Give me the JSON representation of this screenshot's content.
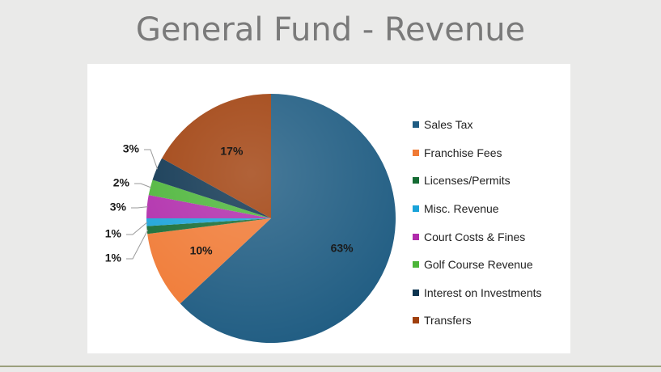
{
  "slide": {
    "title": "General Fund - Revenue"
  },
  "chart_data": {
    "type": "pie",
    "title": "",
    "slices": [
      {
        "name": "Sales Tax",
        "value": 63,
        "label": "63%",
        "color": "#1f5c82"
      },
      {
        "name": "Franchise Fees",
        "value": 10,
        "label": "10%",
        "color": "#f07a35"
      },
      {
        "name": "Licenses/Permits",
        "value": 1,
        "label": "1%",
        "color": "#156b33"
      },
      {
        "name": "Misc. Revenue",
        "value": 1,
        "label": "1%",
        "color": "#1aa3d9"
      },
      {
        "name": "Court Costs & Fines",
        "value": 3,
        "label": "3%",
        "color": "#b02cab"
      },
      {
        "name": "Golf Course Revenue",
        "value": 2,
        "label": "2%",
        "color": "#4cb539"
      },
      {
        "name": "Interest on Investments",
        "value": 3,
        "label": "3%",
        "color": "#0d3450"
      },
      {
        "name": "Transfers",
        "value": 17,
        "label": "17%",
        "color": "#a0400d"
      }
    ],
    "legend_position": "right"
  }
}
